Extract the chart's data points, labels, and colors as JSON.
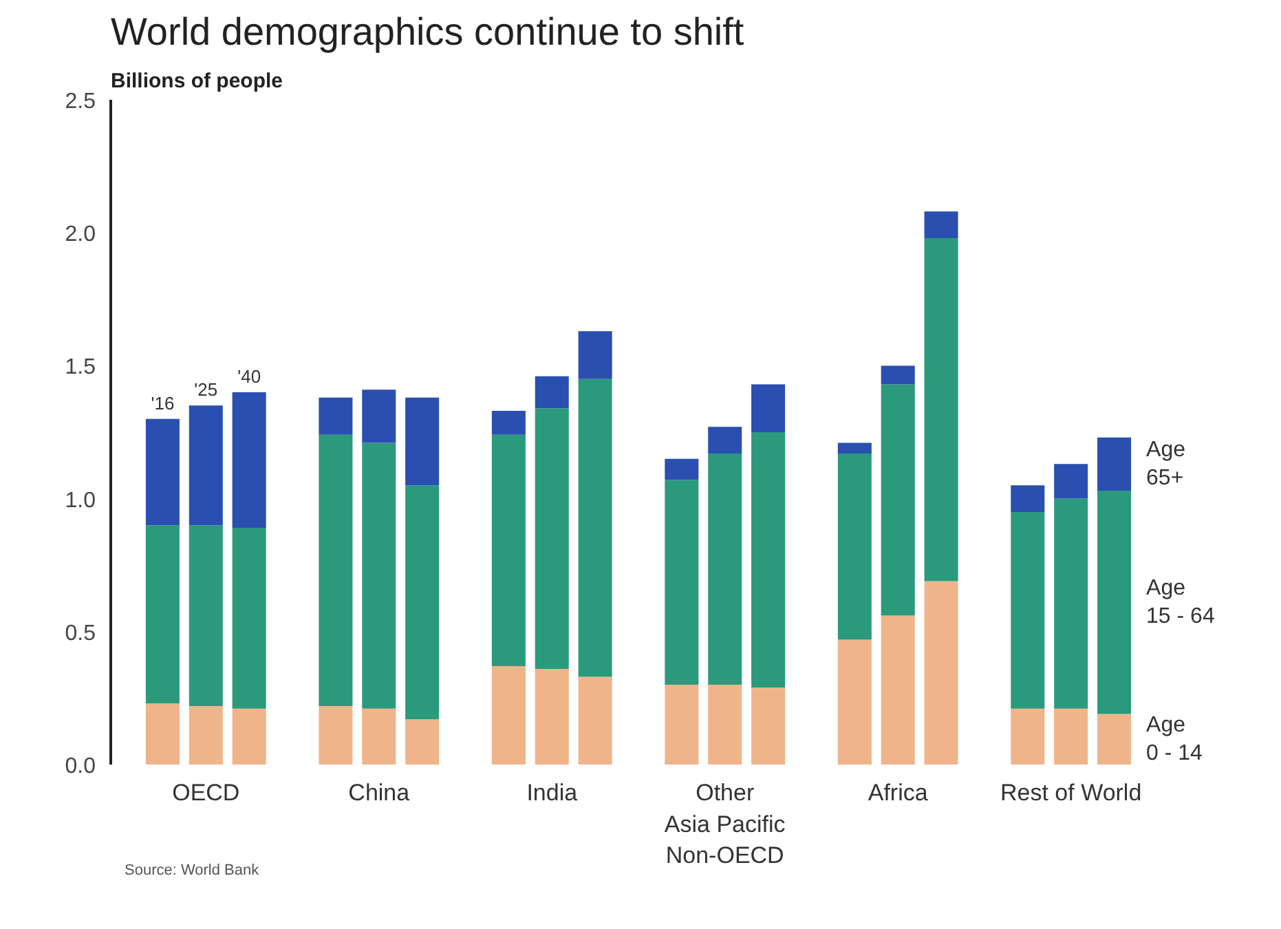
{
  "chart_data": {
    "type": "bar",
    "stacked": true,
    "title": "World demographics continue to shift",
    "subtitle": "Billions of people",
    "categories": [
      null,
      "OECD",
      null,
      null,
      "China",
      null,
      null,
      "India",
      null,
      null,
      "Other\nAsia Pacific\nNon-OECD",
      null,
      null,
      "Africa",
      null,
      null,
      "Rest of World",
      null
    ],
    "series": [
      {
        "name": "Age 0 - 14",
        "color": "#f0b48a",
        "values": [
          0.23,
          0.22,
          0.21,
          0.22,
          0.21,
          0.17,
          0.37,
          0.36,
          0.33,
          0.3,
          0.3,
          0.29,
          0.47,
          0.56,
          0.69,
          0.21,
          0.21,
          0.19
        ]
      },
      {
        "name": "Age 15 - 64",
        "color": "#2b9a7c",
        "values": [
          0.67,
          0.68,
          0.68,
          1.02,
          1.0,
          0.88,
          0.87,
          0.98,
          1.12,
          0.77,
          0.87,
          0.96,
          0.7,
          0.87,
          1.29,
          0.74,
          0.79,
          0.84
        ]
      },
      {
        "name": "Age 65+",
        "color": "#2a4fb0",
        "values": [
          0.4,
          0.45,
          0.51,
          0.14,
          0.2,
          0.33,
          0.09,
          0.12,
          0.18,
          0.08,
          0.1,
          0.18,
          0.04,
          0.07,
          0.1,
          0.1,
          0.13,
          0.2
        ]
      }
    ],
    "ylim": [
      0,
      2.5
    ],
    "yticks": [
      {
        "value": 0,
        "label": "0.0"
      },
      {
        "value": 0.5,
        "label": "0.5"
      },
      {
        "value": 1,
        "label": "1.0"
      },
      {
        "value": 1.5,
        "label": "1.5"
      },
      {
        "value": 2,
        "label": "2.0"
      },
      {
        "value": 2.5,
        "label": "2.5"
      }
    ],
    "annotations": [
      "'16",
      "'25",
      "'40",
      "Source: World Bank"
    ],
    "legend": "right",
    "grid": false
  }
}
